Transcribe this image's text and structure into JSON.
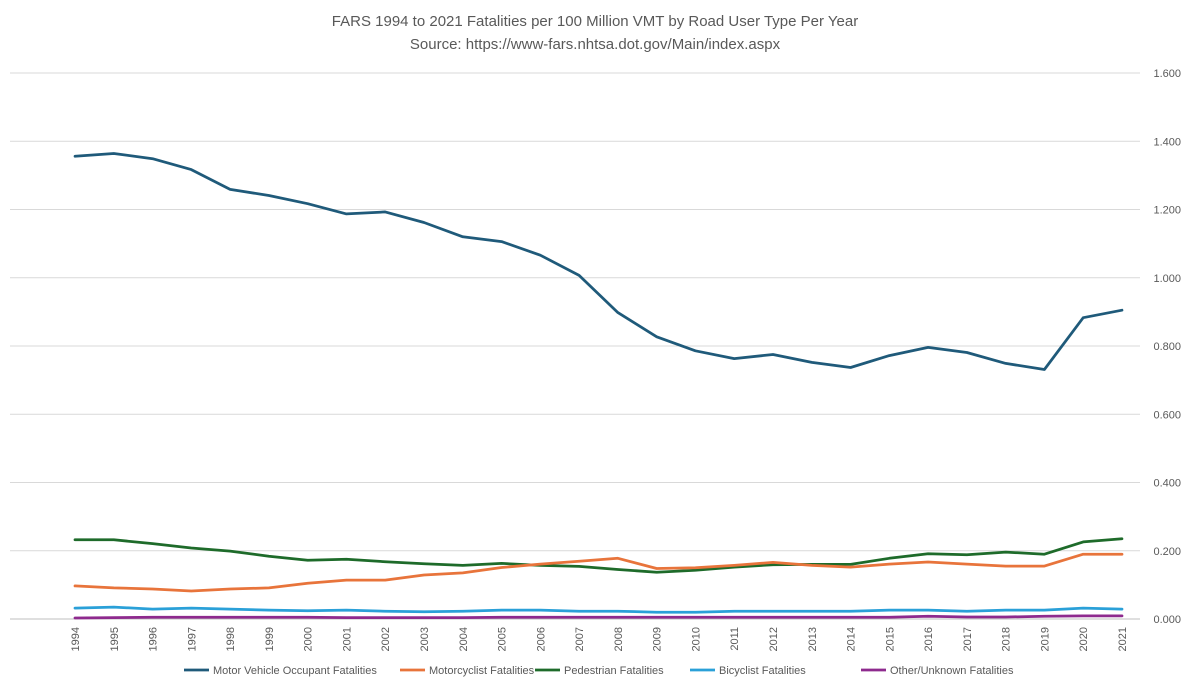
{
  "chart_data": {
    "type": "line",
    "title": "FARS 1994 to 2021 Fatalities  per 100 Million VMT by  Road User Type Per Year",
    "subtitle": "Source: https://www-fars.nhtsa.dot.gov/Main/index.aspx",
    "x": [
      1994,
      1995,
      1996,
      1997,
      1998,
      1999,
      2000,
      2001,
      2002,
      2003,
      2004,
      2005,
      2006,
      2007,
      2008,
      2009,
      2010,
      2011,
      2012,
      2013,
      2014,
      2015,
      2016,
      2017,
      2018,
      2019,
      2020,
      2021
    ],
    "ylim": [
      0,
      1.6
    ],
    "yticks": [
      "0.000",
      "0.200",
      "0.400",
      "0.600",
      "0.800",
      "1.000",
      "1.200",
      "1.400",
      "1.600"
    ],
    "ytick_values": [
      0,
      0.2,
      0.4,
      0.6,
      0.8,
      1.0,
      1.2,
      1.4,
      1.6
    ],
    "y_axis_position": "right",
    "grid": true,
    "legend_position": "bottom",
    "series": [
      {
        "name": "Motor Vehicle Occupant Fatalities",
        "color": "#1f5a7a",
        "values": [
          1.356,
          1.364,
          1.349,
          1.317,
          1.259,
          1.241,
          1.217,
          1.187,
          1.193,
          1.162,
          1.12,
          1.106,
          1.066,
          1.007,
          0.898,
          0.827,
          0.786,
          0.763,
          0.775,
          0.752,
          0.737,
          0.772,
          0.796,
          0.781,
          0.749,
          0.731,
          0.883,
          0.905
        ]
      },
      {
        "name": "Motorcyclist Fatalities",
        "color": "#e8743b",
        "values": [
          0.097,
          0.091,
          0.088,
          0.082,
          0.088,
          0.091,
          0.105,
          0.114,
          0.114,
          0.129,
          0.135,
          0.151,
          0.161,
          0.169,
          0.178,
          0.148,
          0.15,
          0.157,
          0.166,
          0.157,
          0.152,
          0.161,
          0.167,
          0.161,
          0.155,
          0.155,
          0.19,
          0.19
        ]
      },
      {
        "name": "Pedestrian Fatalities",
        "color": "#1e6b2a",
        "values": [
          0.232,
          0.232,
          0.221,
          0.208,
          0.199,
          0.184,
          0.172,
          0.175,
          0.168,
          0.162,
          0.157,
          0.163,
          0.157,
          0.154,
          0.145,
          0.137,
          0.143,
          0.152,
          0.159,
          0.16,
          0.16,
          0.178,
          0.191,
          0.188,
          0.196,
          0.19,
          0.226,
          0.235
        ]
      },
      {
        "name": "Bicyclist Fatalities",
        "color": "#2aa0d8",
        "values": [
          0.032,
          0.035,
          0.029,
          0.032,
          0.029,
          0.026,
          0.024,
          0.026,
          0.023,
          0.021,
          0.023,
          0.026,
          0.026,
          0.023,
          0.023,
          0.02,
          0.02,
          0.023,
          0.023,
          0.023,
          0.023,
          0.026,
          0.026,
          0.023,
          0.026,
          0.026,
          0.032,
          0.029
        ]
      },
      {
        "name": "Other/Unknown Fatalities",
        "color": "#8e2a8e",
        "values": [
          0.003,
          0.004,
          0.005,
          0.005,
          0.005,
          0.005,
          0.005,
          0.004,
          0.004,
          0.004,
          0.004,
          0.005,
          0.005,
          0.005,
          0.005,
          0.005,
          0.005,
          0.005,
          0.005,
          0.005,
          0.005,
          0.005,
          0.008,
          0.006,
          0.006,
          0.008,
          0.009,
          0.009
        ]
      }
    ]
  }
}
